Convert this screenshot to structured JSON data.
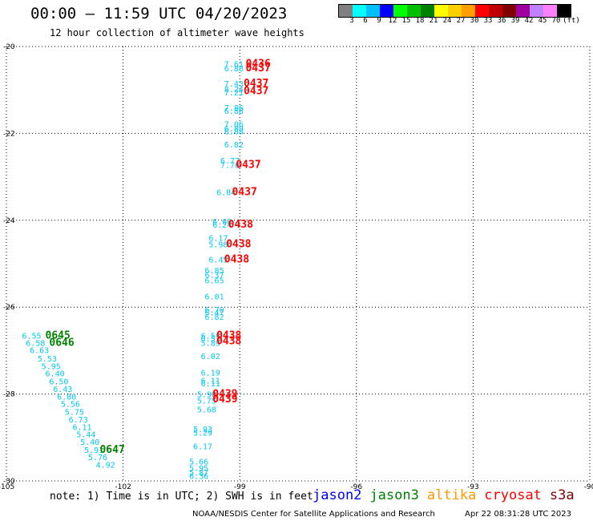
{
  "title": "00:00 — 11:59 UTC 04/20/2023",
  "subtitle": "12 hour collection of altimeter wave heights",
  "colorbar": {
    "colors": [
      "#808080",
      "#00ffff",
      "#00bfff",
      "#0000ff",
      "#00ff00",
      "#00c000",
      "#008000",
      "#ffff00",
      "#ffd000",
      "#ffa000",
      "#ff0000",
      "#c00000",
      "#800000",
      "#a000a0",
      "#c080ff",
      "#ff80ff",
      "#000000"
    ],
    "labels": [
      "3",
      "6",
      "9",
      "12",
      "15",
      "18",
      "21",
      "24",
      "27",
      "30",
      "33",
      "36",
      "39",
      "42",
      "45",
      "70",
      "(ft)"
    ]
  },
  "lat_labels": [
    "-20",
    "-22",
    "-24",
    "-26",
    "-28",
    "-30"
  ],
  "lon_labels": [
    "-105",
    "-102",
    "-99",
    "-96",
    "-93",
    "-90"
  ],
  "chart_data": {
    "type": "scatter",
    "title": "12 hour collection of altimeter wave heights",
    "xlabel": "",
    "ylabel": "",
    "xlim": [
      -105,
      -90
    ],
    "ylim": [
      -30,
      -20
    ],
    "x_ticks": [
      -105,
      -102,
      -99,
      -96,
      -93,
      -90
    ],
    "y_ticks": [
      -20,
      -22,
      -24,
      -26,
      -28,
      -30
    ],
    "grid": true,
    "series": [
      {
        "name": "jason3",
        "color": "#00c8f0",
        "points": [
          {
            "lon": -99.4,
            "lat": -20.4,
            "v": "7.61"
          },
          {
            "lon": -99.4,
            "lat": -20.5,
            "v": "6.88"
          },
          {
            "lon": -99.4,
            "lat": -20.85,
            "v": "7.43"
          },
          {
            "lon": -99.4,
            "lat": -20.98,
            "v": "8.24"
          },
          {
            "lon": -99.4,
            "lat": -21.05,
            "v": "7.21"
          },
          {
            "lon": -99.4,
            "lat": -21.4,
            "v": "7.86"
          },
          {
            "lon": -99.4,
            "lat": -21.48,
            "v": "6.88"
          },
          {
            "lon": -99.4,
            "lat": -21.78,
            "v": "7.06"
          },
          {
            "lon": -99.4,
            "lat": -21.88,
            "v": "6.89"
          },
          {
            "lon": -99.4,
            "lat": -21.95,
            "v": "6.88"
          },
          {
            "lon": -99.4,
            "lat": -22.25,
            "v": "6.82"
          },
          {
            "lon": -99.5,
            "lat": -22.62,
            "v": "6.77"
          },
          {
            "lon": -99.5,
            "lat": -22.72,
            "v": "7.76"
          },
          {
            "lon": -99.6,
            "lat": -23.35,
            "v": "6.84"
          },
          {
            "lon": -99.7,
            "lat": -24.02,
            "v": "6.00"
          },
          {
            "lon": -99.7,
            "lat": -24.1,
            "v": "6.24"
          },
          {
            "lon": -99.8,
            "lat": -24.4,
            "v": "6.17"
          },
          {
            "lon": -99.8,
            "lat": -24.55,
            "v": "5.98"
          },
          {
            "lon": -99.8,
            "lat": -24.9,
            "v": "6.45"
          },
          {
            "lon": -99.9,
            "lat": -25.15,
            "v": "6.85"
          },
          {
            "lon": -99.9,
            "lat": -25.25,
            "v": "6.37"
          },
          {
            "lon": -99.9,
            "lat": -25.38,
            "v": "6.65"
          },
          {
            "lon": -99.9,
            "lat": -25.75,
            "v": "6.01"
          },
          {
            "lon": -99.9,
            "lat": -26.05,
            "v": "6.70"
          },
          {
            "lon": -99.9,
            "lat": -26.12,
            "v": "6.47"
          },
          {
            "lon": -99.9,
            "lat": -26.22,
            "v": "6.82"
          },
          {
            "lon": -100.0,
            "lat": -26.65,
            "v": "6.55"
          },
          {
            "lon": -100.0,
            "lat": -26.72,
            "v": "6.57"
          },
          {
            "lon": -100.0,
            "lat": -26.82,
            "v": "5.89"
          },
          {
            "lon": -100.0,
            "lat": -27.12,
            "v": "6.02"
          },
          {
            "lon": -100.0,
            "lat": -27.5,
            "v": "6.19"
          },
          {
            "lon": -100.0,
            "lat": -27.68,
            "v": "6.11"
          },
          {
            "lon": -100.0,
            "lat": -27.75,
            "v": "6.11"
          },
          {
            "lon": -100.1,
            "lat": -28.0,
            "v": "5.90"
          },
          {
            "lon": -100.1,
            "lat": -28.15,
            "v": "5.75"
          },
          {
            "lon": -100.1,
            "lat": -28.35,
            "v": "5.68"
          },
          {
            "lon": -100.2,
            "lat": -28.8,
            "v": "5.93"
          },
          {
            "lon": -100.2,
            "lat": -28.88,
            "v": "5.29"
          },
          {
            "lon": -100.2,
            "lat": -29.2,
            "v": "6.17"
          },
          {
            "lon": -100.3,
            "lat": -29.55,
            "v": "5.66"
          },
          {
            "lon": -100.3,
            "lat": -29.7,
            "v": "5.95"
          },
          {
            "lon": -100.3,
            "lat": -29.8,
            "v": "5.87"
          },
          {
            "lon": -100.3,
            "lat": -29.88,
            "v": "6.36"
          },
          {
            "lon": -104.6,
            "lat": -26.65,
            "v": "6.55"
          },
          {
            "lon": -104.5,
            "lat": -26.82,
            "v": "6.58"
          },
          {
            "lon": -104.4,
            "lat": -26.98,
            "v": "6.63"
          },
          {
            "lon": -104.2,
            "lat": -27.18,
            "v": "5.53"
          },
          {
            "lon": -104.1,
            "lat": -27.35,
            "v": "5.95"
          },
          {
            "lon": -104.0,
            "lat": -27.52,
            "v": "6.40"
          },
          {
            "lon": -103.9,
            "lat": -27.7,
            "v": "6.50"
          },
          {
            "lon": -103.8,
            "lat": -27.88,
            "v": "6.43"
          },
          {
            "lon": -103.7,
            "lat": -28.05,
            "v": "6.80"
          },
          {
            "lon": -103.6,
            "lat": -28.22,
            "v": "5.56"
          },
          {
            "lon": -103.5,
            "lat": -28.4,
            "v": "5.75"
          },
          {
            "lon": -103.4,
            "lat": -28.58,
            "v": "6.73"
          },
          {
            "lon": -103.3,
            "lat": -28.75,
            "v": "6.11"
          },
          {
            "lon": -103.2,
            "lat": -28.92,
            "v": "5.44"
          },
          {
            "lon": -103.1,
            "lat": -29.1,
            "v": "5.40"
          },
          {
            "lon": -103.0,
            "lat": -29.28,
            "v": "5.91"
          },
          {
            "lon": -102.9,
            "lat": -29.45,
            "v": "5.76"
          },
          {
            "lon": -102.7,
            "lat": -29.62,
            "v": "4.92"
          }
        ]
      },
      {
        "name": "jason3",
        "color": "#008000",
        "points": [
          {
            "lon": -104.0,
            "lat": -26.65,
            "v": "0645"
          },
          {
            "lon": -103.9,
            "lat": -26.82,
            "v": "0646"
          },
          {
            "lon": -102.6,
            "lat": -29.28,
            "v": "0647"
          }
        ]
      },
      {
        "name": "cryosat",
        "color": "#ff0000",
        "points": [
          {
            "lon": -98.85,
            "lat": -20.4,
            "v": "0436"
          },
          {
            "lon": -98.85,
            "lat": -20.5,
            "v": "0437"
          },
          {
            "lon": -98.9,
            "lat": -20.85,
            "v": "0437"
          },
          {
            "lon": -98.9,
            "lat": -21.02,
            "v": "0437"
          },
          {
            "lon": -99.1,
            "lat": -22.72,
            "v": "0437"
          },
          {
            "lon": -99.2,
            "lat": -23.35,
            "v": "0437"
          },
          {
            "lon": -99.3,
            "lat": -24.1,
            "v": "0438"
          },
          {
            "lon": -99.35,
            "lat": -24.55,
            "v": "0438"
          },
          {
            "lon": -99.4,
            "lat": -24.9,
            "v": "0438"
          },
          {
            "lon": -99.6,
            "lat": -26.65,
            "v": "0438"
          },
          {
            "lon": -99.6,
            "lat": -26.78,
            "v": "0438"
          },
          {
            "lon": -99.7,
            "lat": -28.0,
            "v": "0439"
          },
          {
            "lon": -99.7,
            "lat": -28.12,
            "v": "0439"
          }
        ]
      }
    ]
  },
  "note": "note: 1) Time is in UTC; 2) SWH is in feet",
  "legend": [
    {
      "name": "jason2",
      "color": "#0000ff"
    },
    {
      "name": "jason3",
      "color": "#008000"
    },
    {
      "name": "altika",
      "color": "#ff9900"
    },
    {
      "name": "cryosat",
      "color": "#ff0000"
    },
    {
      "name": "s3a",
      "color": "#800000"
    }
  ],
  "credit": "NOAA/NESDIS Center for Satellite Applications and Research",
  "timestamp": "Apr 22 08:31:28 UTC 2023"
}
